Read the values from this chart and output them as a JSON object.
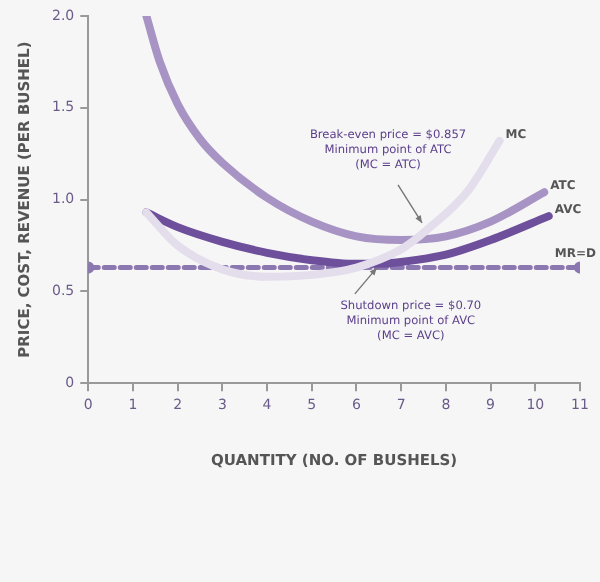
{
  "chart_data": {
    "type": "line",
    "xlabel": "QUANTITY (NO. OF BUSHELS)",
    "ylabel": "PRICE, COST, REVENUE (PER BUSHEL)",
    "xlim": [
      0,
      11
    ],
    "xticks": [
      0,
      1,
      2,
      3,
      4,
      5,
      6,
      7,
      8,
      9,
      10,
      11
    ],
    "ylim": [
      0,
      2
    ],
    "yticks": [
      0,
      {
        "value": 0.5,
        "label": "0.5"
      },
      {
        "value": 1,
        "label": "1.0"
      },
      {
        "value": 1.5,
        "label": "1.5"
      },
      {
        "value": 2,
        "label": "2.0"
      }
    ],
    "grid": false,
    "marker": "none",
    "series": [
      {
        "name": "MC",
        "color": "#e4ddec",
        "x": [
          1.3,
          2,
          3,
          4,
          5,
          6,
          7,
          7.6,
          8.5,
          9.2
        ],
        "values": [
          0.93,
          0.75,
          0.62,
          0.58,
          0.59,
          0.63,
          0.73,
          0.84,
          1.05,
          1.32
        ]
      },
      {
        "name": "ATC",
        "color": "#a894c4",
        "x": [
          1.3,
          1.6,
          2,
          2.5,
          3,
          4,
          5,
          6,
          7,
          8,
          9,
          10.2
        ],
        "values": [
          2.0,
          1.75,
          1.52,
          1.33,
          1.2,
          1.01,
          0.88,
          0.8,
          0.78,
          0.8,
          0.88,
          1.04
        ]
      },
      {
        "name": "AVC",
        "color": "#6e4f9c",
        "x": [
          1.3,
          2,
          3,
          4,
          5,
          6,
          6.5,
          7,
          8,
          9,
          10.3
        ],
        "values": [
          0.93,
          0.85,
          0.77,
          0.71,
          0.67,
          0.65,
          0.65,
          0.66,
          0.7,
          0.78,
          0.91
        ]
      },
      {
        "name": "MR=D",
        "color": "#8c78b0",
        "line_style": "dashed",
        "marker": "circle",
        "x": [
          0,
          11
        ],
        "values": [
          0.63,
          0.63
        ]
      }
    ],
    "annotations": [
      {
        "text": "Break-even price = $0.857\nMinimum point of ATC\n(MC = ATC)",
        "x": 7.6,
        "y": 0.84
      },
      {
        "text": "Shutdown price = $0.70\nMinimum point of AVC\n(MC = AVC)",
        "x": 6.5,
        "y": 0.65
      }
    ]
  }
}
